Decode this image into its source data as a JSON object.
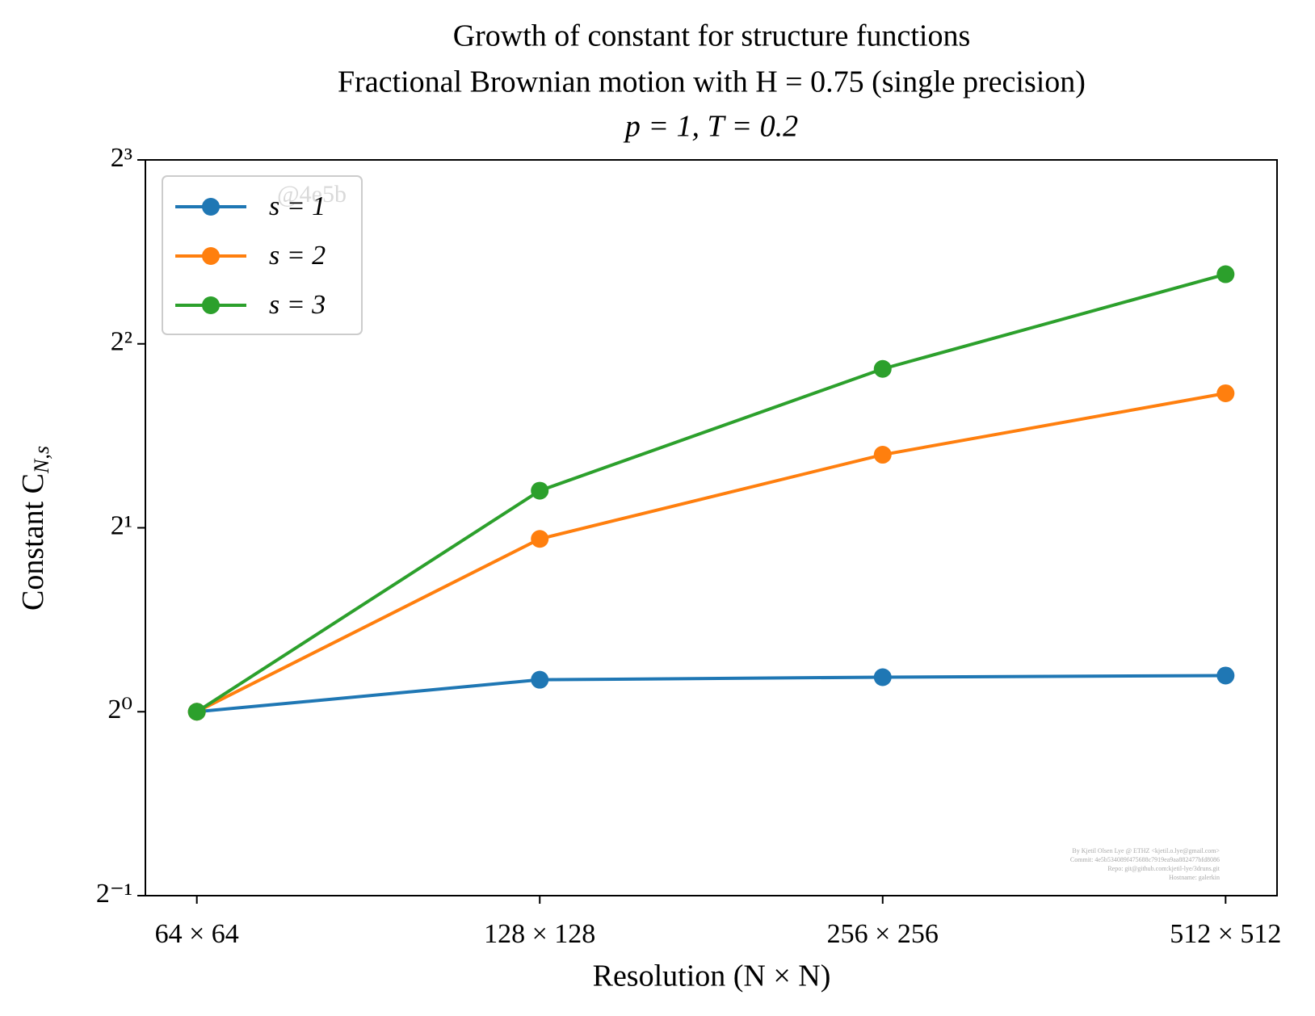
{
  "chart_data": {
    "type": "line",
    "title": [
      "Growth of constant for structure functions",
      "Fractional Brownian motion with H = 0.75 (single precision)",
      "p = 1, T = 0.2"
    ],
    "xlabel": "Resolution (N × N)",
    "ylabel": {
      "text": "Constant C",
      "subscript": "N,s"
    },
    "categories": [
      "64 × 64",
      "128 × 128",
      "256 × 256",
      "512 × 512"
    ],
    "series": [
      {
        "name": "s = 1",
        "color": "#1f77b4",
        "values": [
          1,
          1.128,
          1.139,
          1.146
        ]
      },
      {
        "name": "s = 2",
        "color": "#ff7f0e",
        "values": [
          1,
          1.918,
          2.634,
          3.32
        ]
      },
      {
        "name": "s = 3",
        "color": "#2ca02c",
        "values": [
          1,
          2.3,
          3.64,
          5.2
        ]
      }
    ],
    "ylog": true,
    "ylim": [
      0.5,
      8
    ],
    "yticks": [
      {
        "value": 0.5,
        "label": "2⁻¹"
      },
      {
        "value": 1,
        "label": "2⁰"
      },
      {
        "value": 2,
        "label": "2¹"
      },
      {
        "value": 4,
        "label": "2²"
      },
      {
        "value": 8,
        "label": "2³"
      }
    ],
    "legend": "upper left",
    "annotations": [
      "@4e5b",
      "By Kjetil Olsen Lye @ ETHZ <kjetil.o.lye@gmail.com>",
      "Commit: 4e5b534089f475688c7919ea9aa882477bfd8086",
      "Repo: git@github.com:kjetil-lye/3druns.git",
      "Hostname: galerkin"
    ]
  }
}
